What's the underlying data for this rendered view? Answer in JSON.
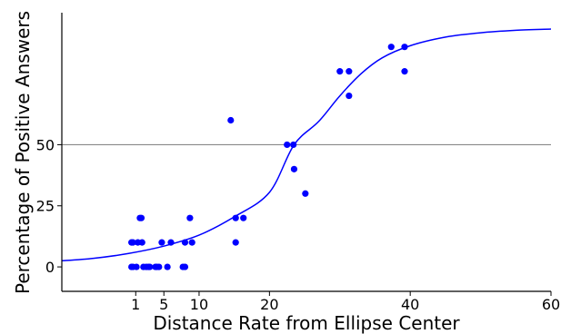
{
  "chart_data": {
    "type": "scatter",
    "title": "",
    "xlabel": "Distance Rate from Ellipse Center",
    "ylabel": "Percentage of Positive Answers",
    "xlim": [
      -9.5,
      60
    ],
    "ylim": [
      -10,
      104
    ],
    "x_ticks": [
      1,
      5,
      10,
      20,
      40,
      60
    ],
    "y_ticks": [
      0,
      25,
      50
    ],
    "reference_line_y": 50,
    "grid": false,
    "legend": "none",
    "colors": {
      "points": "#0000ff",
      "curve": "#0000ff",
      "reference_line": "#888888"
    },
    "points": [
      {
        "x": 0.4,
        "y": 10
      },
      {
        "x": 0.6,
        "y": 10
      },
      {
        "x": 0.4,
        "y": 0
      },
      {
        "x": 0.6,
        "y": 0
      },
      {
        "x": 1.1,
        "y": 0
      },
      {
        "x": 1.3,
        "y": 10
      },
      {
        "x": 1.6,
        "y": 20
      },
      {
        "x": 1.8,
        "y": 20
      },
      {
        "x": 1.9,
        "y": 10
      },
      {
        "x": 2.1,
        "y": 0
      },
      {
        "x": 2.5,
        "y": 0
      },
      {
        "x": 2.8,
        "y": 0
      },
      {
        "x": 3.0,
        "y": 0
      },
      {
        "x": 3.8,
        "y": 0
      },
      {
        "x": 4.0,
        "y": 0
      },
      {
        "x": 4.3,
        "y": 0
      },
      {
        "x": 4.7,
        "y": 10
      },
      {
        "x": 5.5,
        "y": 0
      },
      {
        "x": 6.0,
        "y": 10
      },
      {
        "x": 7.7,
        "y": 0
      },
      {
        "x": 8.0,
        "y": 10
      },
      {
        "x": 8.0,
        "y": 0
      },
      {
        "x": 8.7,
        "y": 20
      },
      {
        "x": 9.0,
        "y": 10
      },
      {
        "x": 14.5,
        "y": 60
      },
      {
        "x": 15.2,
        "y": 10
      },
      {
        "x": 15.2,
        "y": 20
      },
      {
        "x": 16.3,
        "y": 20
      },
      {
        "x": 22.5,
        "y": 50
      },
      {
        "x": 23.4,
        "y": 50
      },
      {
        "x": 23.5,
        "y": 40
      },
      {
        "x": 25.1,
        "y": 30
      },
      {
        "x": 30.0,
        "y": 80
      },
      {
        "x": 31.3,
        "y": 80
      },
      {
        "x": 31.3,
        "y": 70
      },
      {
        "x": 37.3,
        "y": 90
      },
      {
        "x": 39.2,
        "y": 90
      },
      {
        "x": 39.2,
        "y": 80
      }
    ],
    "fit_curve": {
      "type": "logistic",
      "x": [
        -9.5,
        -5,
        0,
        5,
        10,
        15,
        20,
        23.5,
        27,
        30,
        33,
        36,
        40,
        45,
        50,
        55,
        60
      ],
      "y": [
        2.5,
        3.5,
        5.5,
        8.5,
        13,
        20.5,
        30.5,
        50,
        59.5,
        70,
        79,
        85.5,
        90.5,
        94,
        95.8,
        96.8,
        97.3
      ]
    }
  }
}
